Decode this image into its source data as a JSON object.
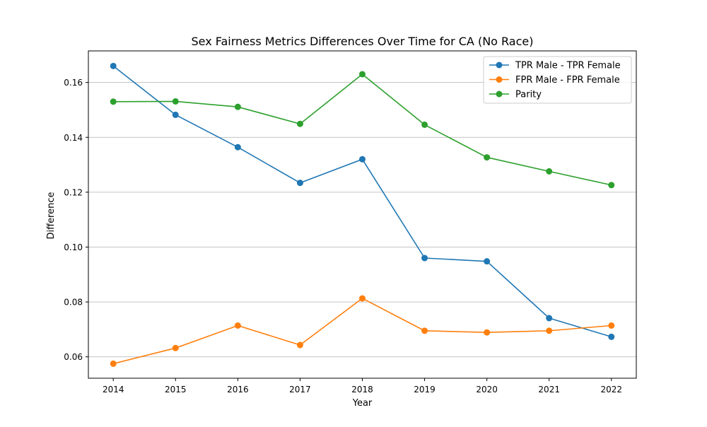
{
  "chart_data": {
    "type": "line",
    "title": "Sex Fairness Metrics Differences Over Time for CA (No Race)",
    "xlabel": "Year",
    "ylabel": "Difference",
    "x": [
      2014,
      2015,
      2016,
      2017,
      2018,
      2019,
      2020,
      2021,
      2022
    ],
    "xticks": [
      "2014",
      "2015",
      "2016",
      "2017",
      "2018",
      "2019",
      "2020",
      "2021",
      "2022"
    ],
    "yticks": [
      "0.06",
      "0.08",
      "0.10",
      "0.12",
      "0.14",
      "0.16"
    ],
    "xlim": [
      2013.6,
      2022.4
    ],
    "ylim": [
      0.0522,
      0.1715
    ],
    "grid": "horizontal",
    "legend_position": "top-right",
    "series": [
      {
        "name": "TPR Male - TPR Female",
        "color": "#1f77b4",
        "values": [
          0.166,
          0.1482,
          0.1364,
          0.1234,
          0.132,
          0.096,
          0.0948,
          0.0741,
          0.0673
        ]
      },
      {
        "name": "FPR Male - FPR Female",
        "color": "#ff7f0e",
        "values": [
          0.0575,
          0.0632,
          0.0714,
          0.0643,
          0.0813,
          0.0695,
          0.0689,
          0.0695,
          0.0714
        ]
      },
      {
        "name": "Parity",
        "color": "#2ca02c",
        "values": [
          0.153,
          0.1531,
          0.1511,
          0.1449,
          0.163,
          0.1446,
          0.1327,
          0.1276,
          0.1226
        ]
      }
    ]
  }
}
